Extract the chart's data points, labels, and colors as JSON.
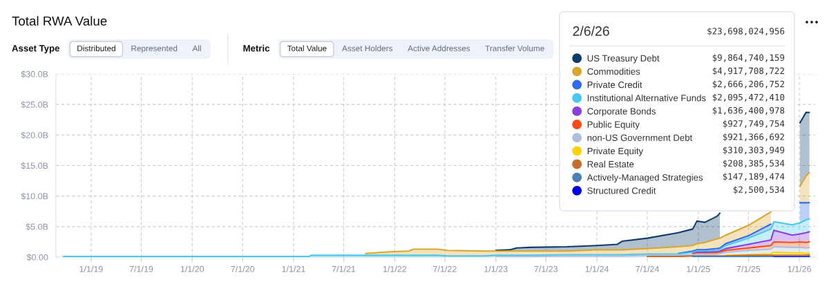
{
  "chart_data": {
    "type": "area",
    "stacked": true,
    "title": "Total RWA Value",
    "legend_title": "2/6/26",
    "annotations": [
      "Asset Type",
      "Distributed",
      "Represented",
      "All",
      "Metric",
      "Total Value",
      "Asset Holders",
      "Active Addresses",
      "Transfer Volume",
      "$23,698,024,956",
      "$9,864,740,159",
      "$4,917,708,722",
      "$2,666,206,752",
      "$2,095,472,410",
      "$1,636,400,978",
      "$927,749,754",
      "$921,366,692",
      "$310,303,949",
      "$208,385,534",
      "$147,189,474",
      "$2,500,534"
    ],
    "x": [
      "2018-09-23",
      "2019-06-01",
      "2020-06-01",
      "2021-02-25",
      "2021-03-05",
      "2021-09-18",
      "2021-11-15",
      "2022-01-01",
      "2022-02-20",
      "2022-03-10",
      "2022-06-05",
      "2022-07-10",
      "2022-11-20",
      "2023-01-01",
      "2023-02-20",
      "2023-03-18",
      "2023-05-05",
      "2023-09-15",
      "2024-01-01",
      "2024-03-15",
      "2024-04-01",
      "2024-07-01",
      "2024-10-20",
      "2024-12-12",
      "2024-12-27",
      "2025-01-25",
      "2025-03-10",
      "2025-03-20",
      "2025-04-10",
      "2025-07-01",
      "2025-09-20",
      "2025-10-01",
      "2025-12-06",
      "2026-01-03",
      "2026-01-25",
      "2026-02-06"
    ],
    "series": [
      {
        "name": "Structured Credit",
        "color": "#0000f0",
        "values": [
          null,
          null,
          null,
          null,
          null,
          null,
          null,
          null,
          null,
          null,
          null,
          null,
          null,
          null,
          null,
          null,
          null,
          null,
          null,
          null,
          null,
          null,
          null,
          null,
          null,
          null,
          null,
          null,
          null,
          null,
          null,
          0.0,
          0.0,
          0.0,
          0.0,
          0.0025
        ]
      },
      {
        "name": "Actively-Managed Strategies",
        "color": "#4a82b4",
        "values": [
          null,
          null,
          null,
          null,
          null,
          null,
          null,
          null,
          null,
          null,
          null,
          null,
          null,
          null,
          null,
          null,
          null,
          null,
          null,
          null,
          null,
          null,
          null,
          0.1,
          0.1,
          0.1,
          0.1,
          0.1,
          0.1,
          0.1,
          0.1,
          0.1,
          0.1,
          0.1,
          0.1,
          0.147
        ]
      },
      {
        "name": "Real Estate",
        "color": "#c9692a",
        "values": [
          null,
          null,
          null,
          null,
          null,
          null,
          null,
          null,
          null,
          null,
          null,
          null,
          null,
          null,
          null,
          null,
          null,
          null,
          null,
          null,
          null,
          0.1,
          0.1,
          0.1,
          0.1,
          0.1,
          0.1,
          0.1,
          0.1,
          0.2,
          0.2,
          0.2,
          0.2,
          0.2,
          0.2,
          0.208
        ]
      },
      {
        "name": "Private Equity",
        "color": "#ffd200",
        "values": [
          null,
          null,
          null,
          null,
          null,
          null,
          null,
          null,
          null,
          null,
          null,
          null,
          null,
          null,
          null,
          null,
          null,
          null,
          null,
          null,
          null,
          null,
          null,
          null,
          null,
          null,
          null,
          null,
          0.1,
          0.1,
          0.2,
          0.5,
          0.4,
          0.4,
          0.3,
          0.31
        ]
      },
      {
        "name": "non-US Government Debt",
        "color": "#aac0dc",
        "values": [
          null,
          null,
          null,
          null,
          null,
          null,
          null,
          null,
          null,
          null,
          null,
          null,
          null,
          0.1,
          0.1,
          0.1,
          0.1,
          0.2,
          0.2,
          0.2,
          0.2,
          0.2,
          0.2,
          0.2,
          0.3,
          0.3,
          0.3,
          0.4,
          0.5,
          0.7,
          0.8,
          0.9,
          0.9,
          0.9,
          0.9,
          0.921
        ]
      },
      {
        "name": "Public Equity",
        "color": "#ff4a14",
        "values": [
          null,
          null,
          null,
          null,
          null,
          null,
          null,
          null,
          null,
          null,
          null,
          null,
          null,
          null,
          null,
          null,
          null,
          null,
          null,
          null,
          null,
          null,
          null,
          0.1,
          0.1,
          0.1,
          0.2,
          0.2,
          0.3,
          0.4,
          0.6,
          0.8,
          0.8,
          0.9,
          0.9,
          0.928
        ]
      },
      {
        "name": "Corporate Bonds",
        "color": "#8a3ee0",
        "values": [
          null,
          null,
          null,
          null,
          null,
          null,
          null,
          null,
          null,
          null,
          null,
          null,
          null,
          null,
          null,
          null,
          null,
          null,
          null,
          null,
          null,
          null,
          null,
          0.1,
          0.2,
          0.2,
          0.2,
          0.2,
          0.3,
          0.6,
          0.9,
          1.9,
          1.2,
          1.3,
          1.6,
          1.636
        ]
      },
      {
        "name": "Institutional Alternative Funds",
        "color": "#48c9ec",
        "values": [
          0.1,
          0.1,
          0.1,
          0.1,
          0.3,
          0.3,
          0.3,
          0.3,
          0.3,
          0.3,
          0.3,
          0.2,
          0.2,
          0.2,
          0.2,
          0.2,
          0.2,
          0.2,
          0.2,
          0.2,
          0.2,
          0.2,
          0.2,
          0.2,
          0.2,
          0.2,
          0.3,
          0.3,
          0.5,
          1.0,
          1.8,
          1.4,
          1.7,
          1.8,
          2.1,
          2.095
        ]
      },
      {
        "name": "Private Credit",
        "color": "#2f6bf2",
        "values": [
          null,
          null,
          null,
          null,
          null,
          null,
          null,
          null,
          null,
          null,
          null,
          null,
          null,
          null,
          null,
          null,
          null,
          null,
          null,
          null,
          null,
          null,
          0.1,
          0.2,
          0.2,
          0.2,
          0.2,
          0.2,
          0.3,
          0.4,
          0.8,
          null,
          null,
          3.3,
          2.8,
          2.666
        ]
      },
      {
        "name": "Commodities",
        "color": "#d9a62e",
        "values": [
          null,
          null,
          null,
          null,
          null,
          0.3,
          0.5,
          0.6,
          0.7,
          1.0,
          1.0,
          0.9,
          0.8,
          0.7,
          0.7,
          0.7,
          0.7,
          0.6,
          0.8,
          0.8,
          0.8,
          0.9,
          1.1,
          0.9,
          1.0,
          1.2,
          1.6,
          1.6,
          1.4,
          1.7,
          2.0,
          null,
          null,
          2.7,
          4.4,
          4.918
        ]
      },
      {
        "name": "US Treasury Debt",
        "color": "#0d3b6b",
        "values": [
          null,
          null,
          null,
          null,
          null,
          null,
          null,
          null,
          null,
          null,
          null,
          null,
          null,
          0.1,
          0.2,
          0.5,
          0.6,
          0.7,
          0.7,
          0.9,
          1.4,
          1.7,
          2.3,
          2.7,
          3.7,
          3.3,
          3.7,
          4.1,
          null,
          null,
          null,
          null,
          null,
          10.4,
          10.4,
          9.865
        ]
      }
    ],
    "xlim": [
      "2018-08-27",
      "2026-02-27"
    ],
    "ylim": [
      0,
      30
    ],
    "xticks": [
      {
        "value": "2019-01-01",
        "label": "1/1/19"
      },
      {
        "value": "2019-07-01",
        "label": "7/1/19"
      },
      {
        "value": "2020-01-01",
        "label": "1/1/20"
      },
      {
        "value": "2020-07-01",
        "label": "7/1/20"
      },
      {
        "value": "2021-01-01",
        "label": "1/1/21"
      },
      {
        "value": "2021-07-01",
        "label": "7/1/21"
      },
      {
        "value": "2022-01-01",
        "label": "1/1/22"
      },
      {
        "value": "2022-07-01",
        "label": "7/1/22"
      },
      {
        "value": "2023-01-01",
        "label": "1/1/23"
      },
      {
        "value": "2023-07-01",
        "label": "7/1/23"
      },
      {
        "value": "2024-01-01",
        "label": "1/1/24"
      },
      {
        "value": "2024-07-01",
        "label": "7/1/24"
      },
      {
        "value": "2025-01-01",
        "label": "1/1/25"
      },
      {
        "value": "2025-07-01",
        "label": "7/1/25"
      },
      {
        "value": "2026-01-01",
        "label": "1/1/26"
      }
    ],
    "yticks": [
      {
        "value": 0,
        "label": "$0.00"
      },
      {
        "value": 5,
        "label": "$5.0B"
      },
      {
        "value": 10,
        "label": "$10.0B"
      },
      {
        "value": 15,
        "label": "$15.0B"
      },
      {
        "value": 20,
        "label": "$20.0B"
      },
      {
        "value": 25,
        "label": "$25.0B"
      },
      {
        "value": 30,
        "label": "$30.0B"
      }
    ],
    "grid": true,
    "legend": "top right"
  }
}
